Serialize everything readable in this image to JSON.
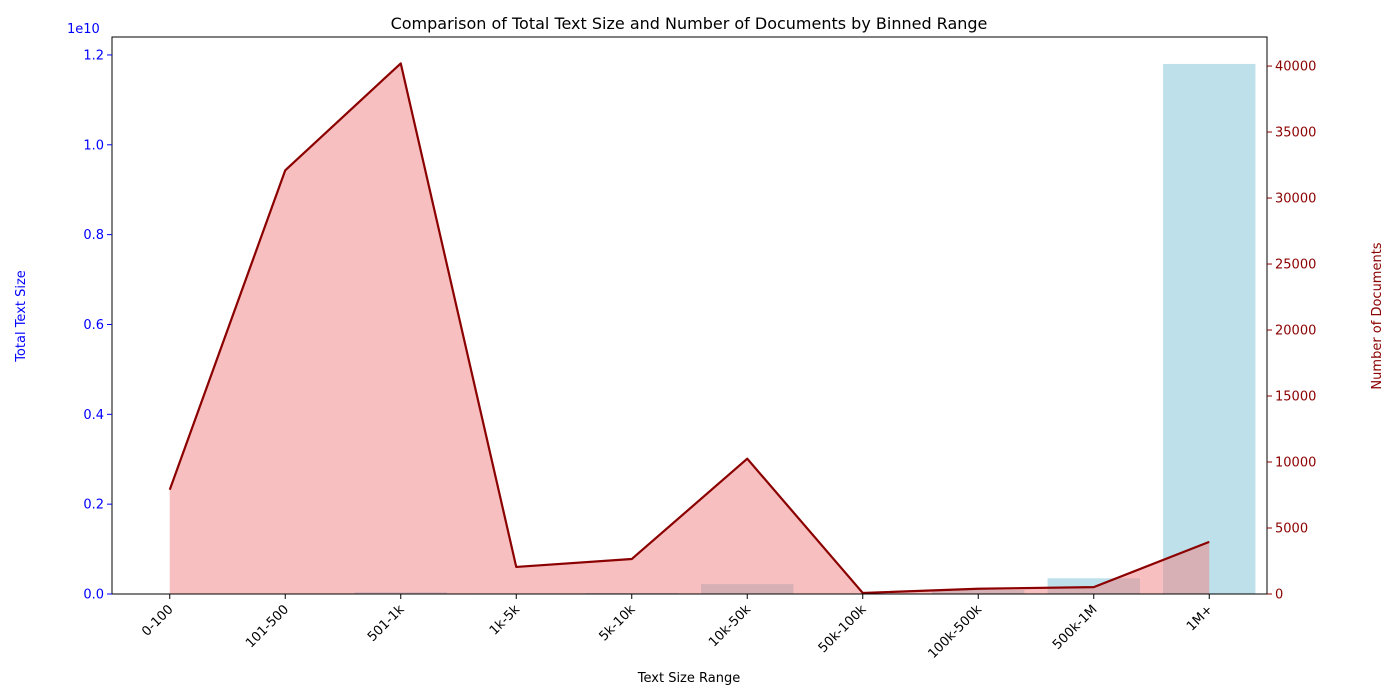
{
  "chart_data": {
    "type": "bar",
    "title": "Comparison of Total Text Size and Number of Documents by Binned Range",
    "xlabel": "Text Size Range",
    "categories": [
      "0-100",
      "101-500",
      "501-1k",
      "1k-5k",
      "5k-10k",
      "10k-50k",
      "50k-100k",
      "100k-500k",
      "500k-1M",
      "1M+"
    ],
    "left_axis": {
      "label": "Total Text Size",
      "multiplier_label": "1e10",
      "ylim": [
        0,
        1.24
      ],
      "ticks": [
        0.0,
        0.2,
        0.4,
        0.6,
        0.8,
        1.0,
        1.2
      ],
      "tick_labels": [
        "0.0",
        "0.2",
        "0.4",
        "0.6",
        "0.8",
        "1.0",
        "1.2"
      ],
      "color": "#0000ff"
    },
    "right_axis": {
      "label": "Number of Documents",
      "ylim": [
        0,
        42200
      ],
      "ticks": [
        0,
        5000,
        10000,
        15000,
        20000,
        25000,
        30000,
        35000,
        40000
      ],
      "tick_labels": [
        "0",
        "5000",
        "10000",
        "15000",
        "20000",
        "25000",
        "30000",
        "35000",
        "40000"
      ],
      "color": "#8b0000"
    },
    "series": [
      {
        "kind": "bar",
        "axis": "left",
        "color": "#add8e6",
        "values": [
          1e-05,
          0.0009,
          0.0038,
          0.0012,
          0.0022,
          0.022,
          0.0006,
          0.009,
          0.035,
          1.18
        ]
      },
      {
        "kind": "line-area",
        "axis": "right",
        "color": "#8b0000",
        "fill": "#f08080",
        "values": [
          7900,
          32100,
          40200,
          2050,
          2650,
          10250,
          80,
          400,
          520,
          3950
        ]
      }
    ]
  }
}
